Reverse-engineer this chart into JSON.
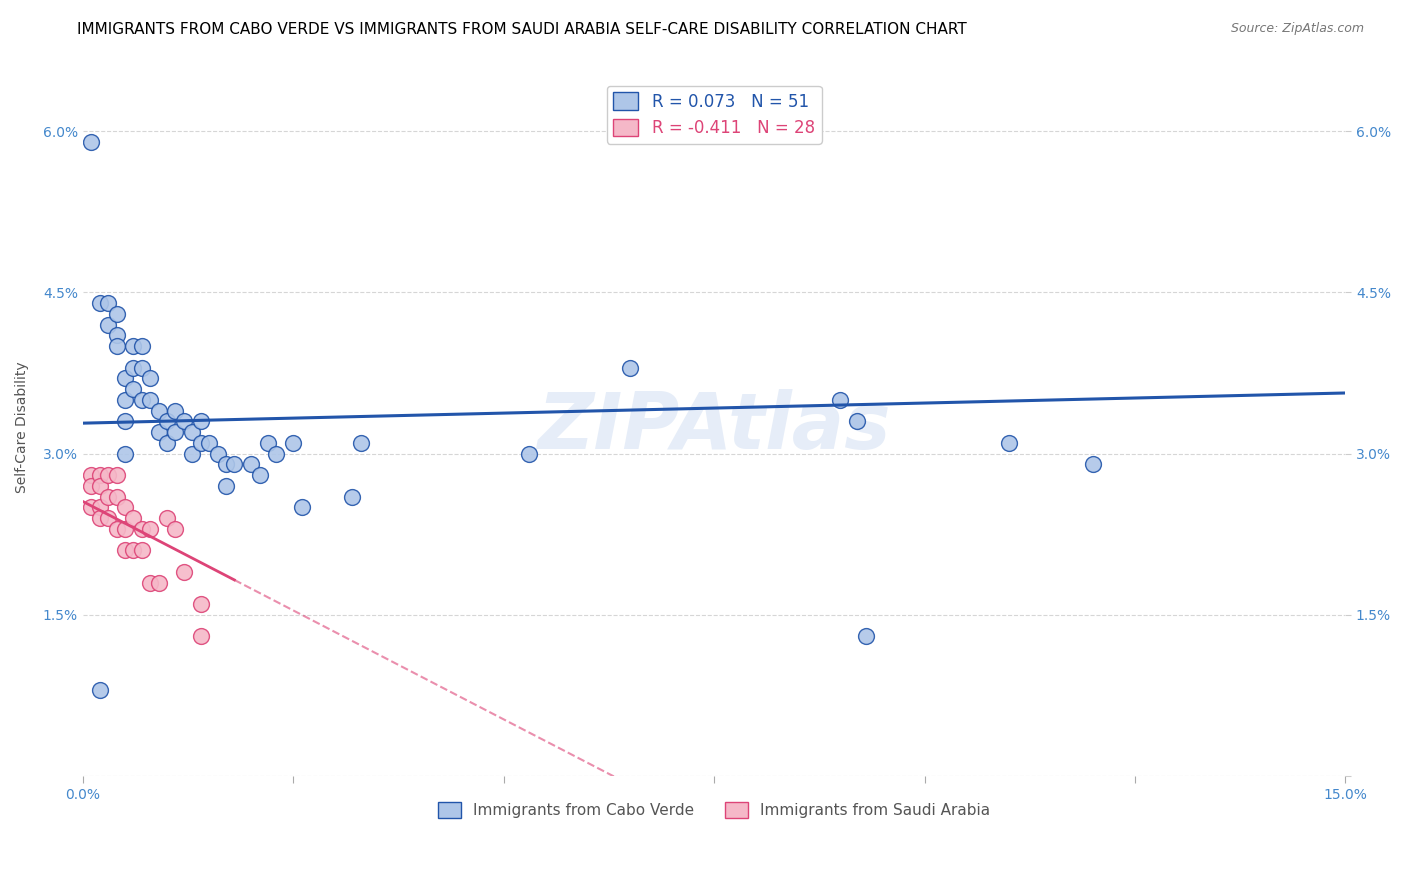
{
  "title": "IMMIGRANTS FROM CABO VERDE VS IMMIGRANTS FROM SAUDI ARABIA SELF-CARE DISABILITY CORRELATION CHART",
  "source": "Source: ZipAtlas.com",
  "ylabel": "Self-Care Disability",
  "xlim": [
    0.0,
    0.15
  ],
  "ylim": [
    0.0,
    0.065
  ],
  "xticks": [
    0.0,
    0.025,
    0.05,
    0.075,
    0.1,
    0.125,
    0.15
  ],
  "xticklabels": [
    "0.0%",
    "",
    "",
    "",
    "",
    "",
    "15.0%"
  ],
  "yticks": [
    0.0,
    0.015,
    0.03,
    0.045,
    0.06
  ],
  "yticklabels": [
    "",
    "1.5%",
    "3.0%",
    "4.5%",
    "6.0%"
  ],
  "cabo_verde_color": "#aec6e8",
  "saudi_arabia_color": "#f5b8c8",
  "cabo_verde_R": 0.073,
  "cabo_verde_N": 51,
  "saudi_arabia_R": -0.411,
  "saudi_arabia_N": 28,
  "cabo_verde_line_color": "#2255aa",
  "saudi_arabia_line_color": "#dd4477",
  "watermark": "ZIPAtlas",
  "cabo_verde_scatter_x": [
    0.001,
    0.002,
    0.003,
    0.003,
    0.004,
    0.004,
    0.004,
    0.005,
    0.005,
    0.005,
    0.005,
    0.006,
    0.006,
    0.006,
    0.007,
    0.007,
    0.007,
    0.008,
    0.008,
    0.009,
    0.009,
    0.01,
    0.01,
    0.011,
    0.011,
    0.012,
    0.013,
    0.013,
    0.014,
    0.014,
    0.015,
    0.016,
    0.017,
    0.017,
    0.018,
    0.02,
    0.021,
    0.022,
    0.023,
    0.025,
    0.026,
    0.032,
    0.033,
    0.053,
    0.065,
    0.09,
    0.092,
    0.093,
    0.11,
    0.12,
    0.002
  ],
  "cabo_verde_scatter_y": [
    0.059,
    0.044,
    0.044,
    0.042,
    0.043,
    0.041,
    0.04,
    0.037,
    0.035,
    0.033,
    0.03,
    0.04,
    0.038,
    0.036,
    0.04,
    0.038,
    0.035,
    0.037,
    0.035,
    0.034,
    0.032,
    0.033,
    0.031,
    0.034,
    0.032,
    0.033,
    0.032,
    0.03,
    0.033,
    0.031,
    0.031,
    0.03,
    0.029,
    0.027,
    0.029,
    0.029,
    0.028,
    0.031,
    0.03,
    0.031,
    0.025,
    0.026,
    0.031,
    0.03,
    0.038,
    0.035,
    0.033,
    0.013,
    0.031,
    0.029,
    0.008
  ],
  "saudi_arabia_scatter_x": [
    0.001,
    0.001,
    0.001,
    0.002,
    0.002,
    0.002,
    0.002,
    0.003,
    0.003,
    0.003,
    0.004,
    0.004,
    0.004,
    0.005,
    0.005,
    0.005,
    0.006,
    0.006,
    0.007,
    0.007,
    0.008,
    0.008,
    0.009,
    0.01,
    0.011,
    0.012,
    0.014,
    0.014
  ],
  "saudi_arabia_scatter_y": [
    0.028,
    0.027,
    0.025,
    0.028,
    0.027,
    0.025,
    0.024,
    0.028,
    0.026,
    0.024,
    0.028,
    0.026,
    0.023,
    0.025,
    0.023,
    0.021,
    0.024,
    0.021,
    0.023,
    0.021,
    0.023,
    0.018,
    0.018,
    0.024,
    0.023,
    0.019,
    0.016,
    0.013
  ],
  "legend_cabo_verde_label": "Immigrants from Cabo Verde",
  "legend_saudi_arabia_label": "Immigrants from Saudi Arabia",
  "title_fontsize": 11,
  "axis_label_fontsize": 10,
  "tick_fontsize": 10,
  "tick_color": "#4488cc",
  "grid_color": "#cccccc",
  "watermark_color": "#c8d8f0",
  "source_color": "#777777"
}
